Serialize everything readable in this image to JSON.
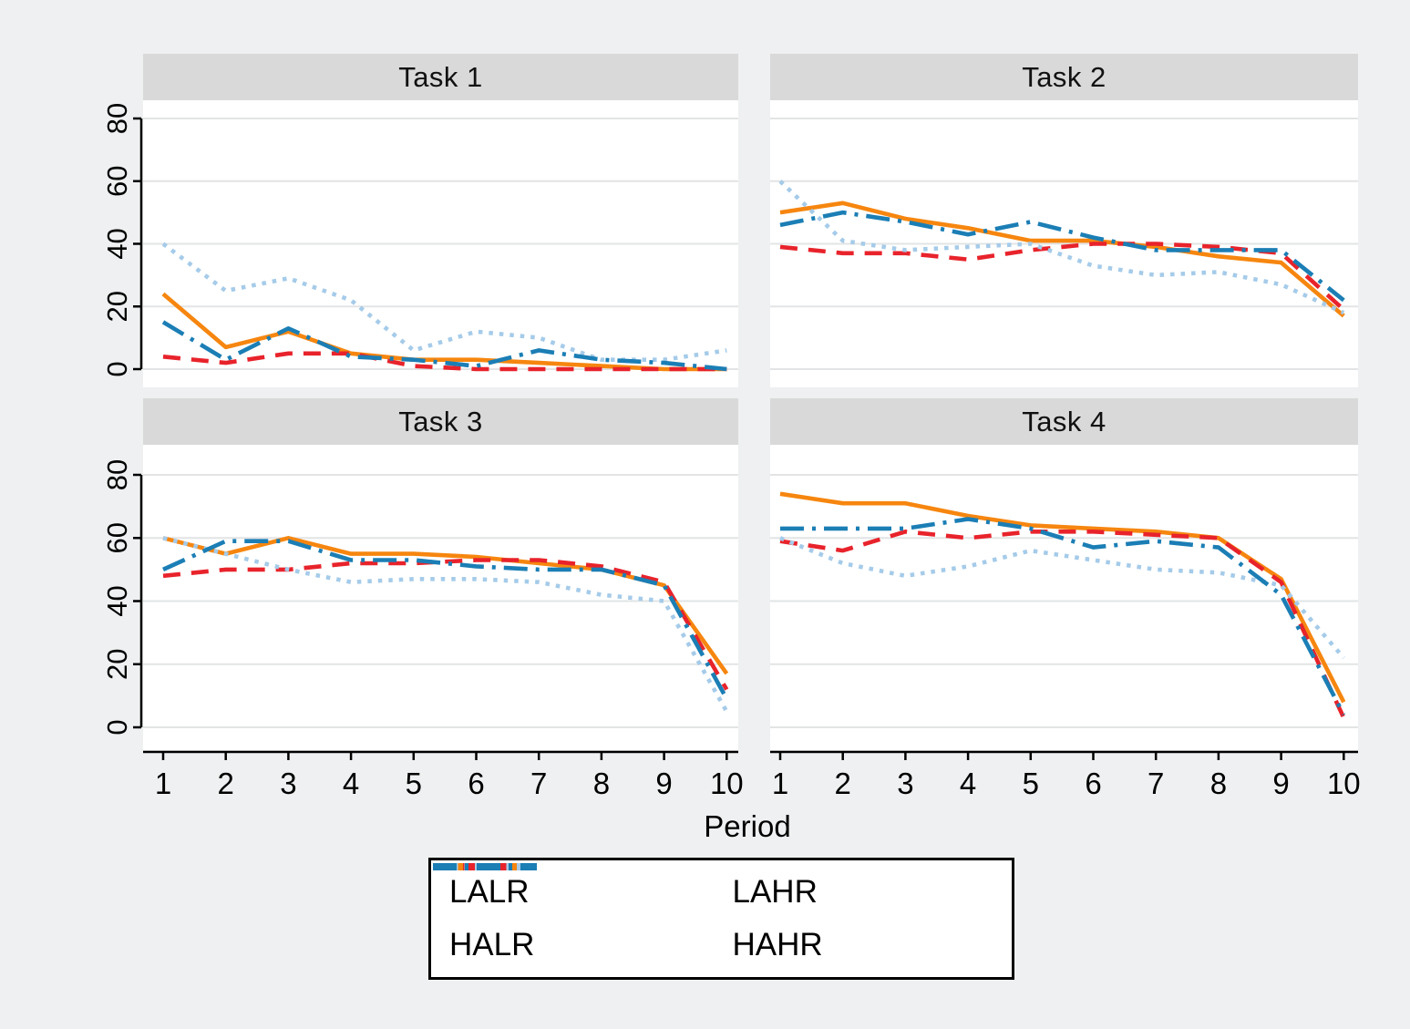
{
  "chart_data": {
    "type": "line",
    "x": [
      1,
      2,
      3,
      4,
      5,
      6,
      7,
      8,
      9,
      10
    ],
    "xlabel": "Period",
    "ylim": [
      0,
      80
    ],
    "yticks": [
      0,
      20,
      40,
      60,
      80
    ],
    "xticks": [
      1,
      2,
      3,
      4,
      5,
      6,
      7,
      8,
      9,
      10
    ],
    "grid": true,
    "legend_position": "bottom-center",
    "styles": [
      {
        "name": "LALR",
        "color": "#f6860f",
        "dash": "solid"
      },
      {
        "name": "LAHR",
        "color": "#e8232b",
        "dash": "dashed"
      },
      {
        "name": "HALR",
        "color": "#a5cbe9",
        "dash": "dotted"
      },
      {
        "name": "HAHR",
        "color": "#1b7eb5",
        "dash": "dashdot"
      }
    ],
    "panels": [
      {
        "title": "Task 1",
        "series": [
          {
            "name": "LALR",
            "values": [
              24,
              7,
              12,
              5,
              3,
              3,
              2,
              1,
              0,
              0
            ]
          },
          {
            "name": "LAHR",
            "values": [
              4,
              2,
              5,
              5,
              1,
              0,
              0,
              0,
              0,
              0
            ]
          },
          {
            "name": "HALR",
            "values": [
              40,
              25,
              29,
              22,
              6,
              12,
              10,
              3,
              3,
              6
            ]
          },
          {
            "name": "HAHR",
            "values": [
              15,
              3,
              13,
              4,
              3,
              1,
              6,
              3,
              2,
              0
            ]
          }
        ]
      },
      {
        "title": "Task 2",
        "series": [
          {
            "name": "LALR",
            "values": [
              50,
              53,
              48,
              45,
              41,
              41,
              39,
              36,
              34,
              17
            ]
          },
          {
            "name": "LAHR",
            "values": [
              39,
              37,
              37,
              35,
              38,
              40,
              40,
              39,
              37,
              19
            ]
          },
          {
            "name": "HALR",
            "values": [
              60,
              41,
              38,
              39,
              40,
              33,
              30,
              31,
              27,
              18
            ]
          },
          {
            "name": "HAHR",
            "values": [
              46,
              50,
              47,
              43,
              47,
              42,
              38,
              38,
              38,
              22
            ]
          }
        ]
      },
      {
        "title": "Task 3",
        "series": [
          {
            "name": "LALR",
            "values": [
              60,
              55,
              60,
              55,
              55,
              54,
              52,
              50,
              45,
              17
            ]
          },
          {
            "name": "LAHR",
            "values": [
              48,
              50,
              50,
              52,
              52,
              53,
              53,
              51,
              46,
              12
            ]
          },
          {
            "name": "HALR",
            "values": [
              60,
              55,
              50,
              46,
              47,
              47,
              46,
              42,
              40,
              5
            ]
          },
          {
            "name": "HAHR",
            "values": [
              50,
              59,
              59,
              53,
              53,
              51,
              50,
              50,
              45,
              9
            ]
          }
        ]
      },
      {
        "title": "Task 4",
        "series": [
          {
            "name": "LALR",
            "values": [
              74,
              71,
              71,
              67,
              64,
              63,
              62,
              60,
              47,
              8
            ]
          },
          {
            "name": "LAHR",
            "values": [
              59,
              56,
              62,
              60,
              62,
              62,
              61,
              60,
              46,
              3
            ]
          },
          {
            "name": "HALR",
            "values": [
              60,
              52,
              48,
              51,
              56,
              53,
              50,
              49,
              45,
              22
            ]
          },
          {
            "name": "HAHR",
            "values": [
              63,
              63,
              63,
              66,
              63,
              57,
              59,
              57,
              42,
              4
            ]
          }
        ]
      }
    ]
  },
  "colors": {
    "figure_background": "#eef0f1",
    "plot_background": "#ffffff",
    "gridline": "#e2e4e5",
    "title_strip": "#d9d9d9",
    "axis": "#000000"
  }
}
